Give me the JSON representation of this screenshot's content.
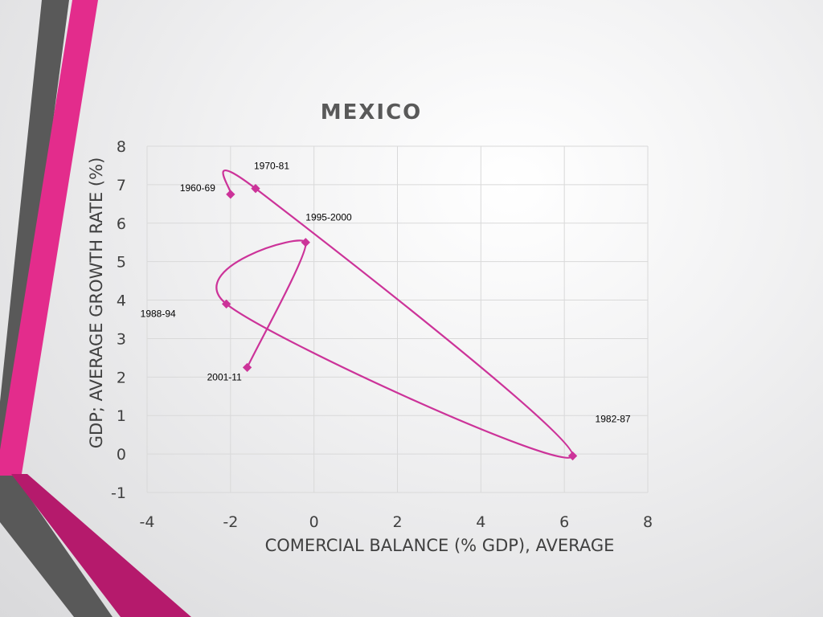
{
  "chart_data": {
    "type": "scatter",
    "title": "MEXICO",
    "xlabel": "COMERCIAL BALANCE (% GDP), AVERAGE",
    "ylabel": "GDP; AVERAGE GROWTH RATE (%)",
    "xlim": [
      -4,
      8
    ],
    "ylim": [
      -1,
      8
    ],
    "xticks": [
      "-4",
      "-2",
      "0",
      "2",
      "4",
      "6",
      "8"
    ],
    "yticks": [
      "-1",
      "0",
      "1",
      "2",
      "3",
      "4",
      "5",
      "6",
      "7",
      "8"
    ],
    "grid": true,
    "lines_smoothed": true,
    "series_color": "#cc3399",
    "points": [
      {
        "label": "1960-69",
        "x": -2.0,
        "y": 6.75
      },
      {
        "label": "1970-81",
        "x": -1.4,
        "y": 6.9
      },
      {
        "label": "1982-87",
        "x": 6.2,
        "y": -0.05
      },
      {
        "label": "1988-94",
        "x": -2.1,
        "y": 3.9
      },
      {
        "label": "1995-2000",
        "x": -0.2,
        "y": 5.5
      },
      {
        "label": "2001-11",
        "x": -1.6,
        "y": 2.25
      }
    ]
  }
}
